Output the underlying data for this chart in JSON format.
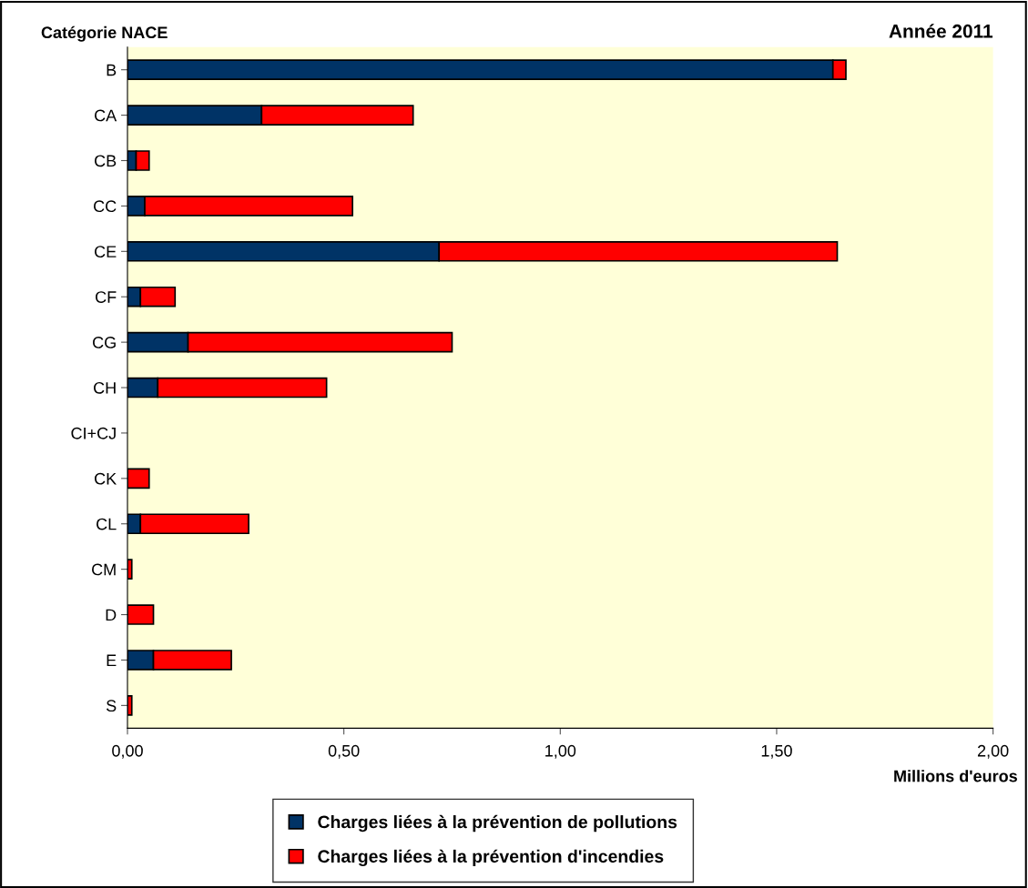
{
  "chart_data": {
    "type": "bar",
    "orientation": "horizontal",
    "stacked": true,
    "title": "Année 2011",
    "ylabel": "Catégorie NACE",
    "xlabel": "Millions d'euros",
    "categories": [
      "B",
      "CA",
      "CB",
      "CC",
      "CE",
      "CF",
      "CG",
      "CH",
      "CI+CJ",
      "CK",
      "CL",
      "CM",
      "D",
      "E",
      "S"
    ],
    "series": [
      {
        "name": "Charges liées à la prévention de pollutions",
        "color": "#003366",
        "values": [
          1.63,
          0.31,
          0.02,
          0.04,
          0.72,
          0.03,
          0.14,
          0.07,
          0,
          0.0,
          0.03,
          0,
          0,
          0.06,
          0
        ]
      },
      {
        "name": "Charges liées à la prévention d'incendies",
        "color": "#ff0000",
        "values": [
          0.03,
          0.35,
          0.03,
          0.48,
          0.92,
          0.08,
          0.61,
          0.39,
          0,
          0.05,
          0.25,
          0.01,
          0.06,
          0.18,
          0.01
        ]
      }
    ],
    "xlim": [
      0,
      2
    ],
    "xticks": [
      {
        "value": 0,
        "label": "0,00"
      },
      {
        "value": 0.5,
        "label": "0,50"
      },
      {
        "value": 1,
        "label": "1,00"
      },
      {
        "value": 1.5,
        "label": "1,50"
      },
      {
        "value": 2,
        "label": "2,00"
      }
    ],
    "grid": false,
    "legend": "bottom"
  }
}
